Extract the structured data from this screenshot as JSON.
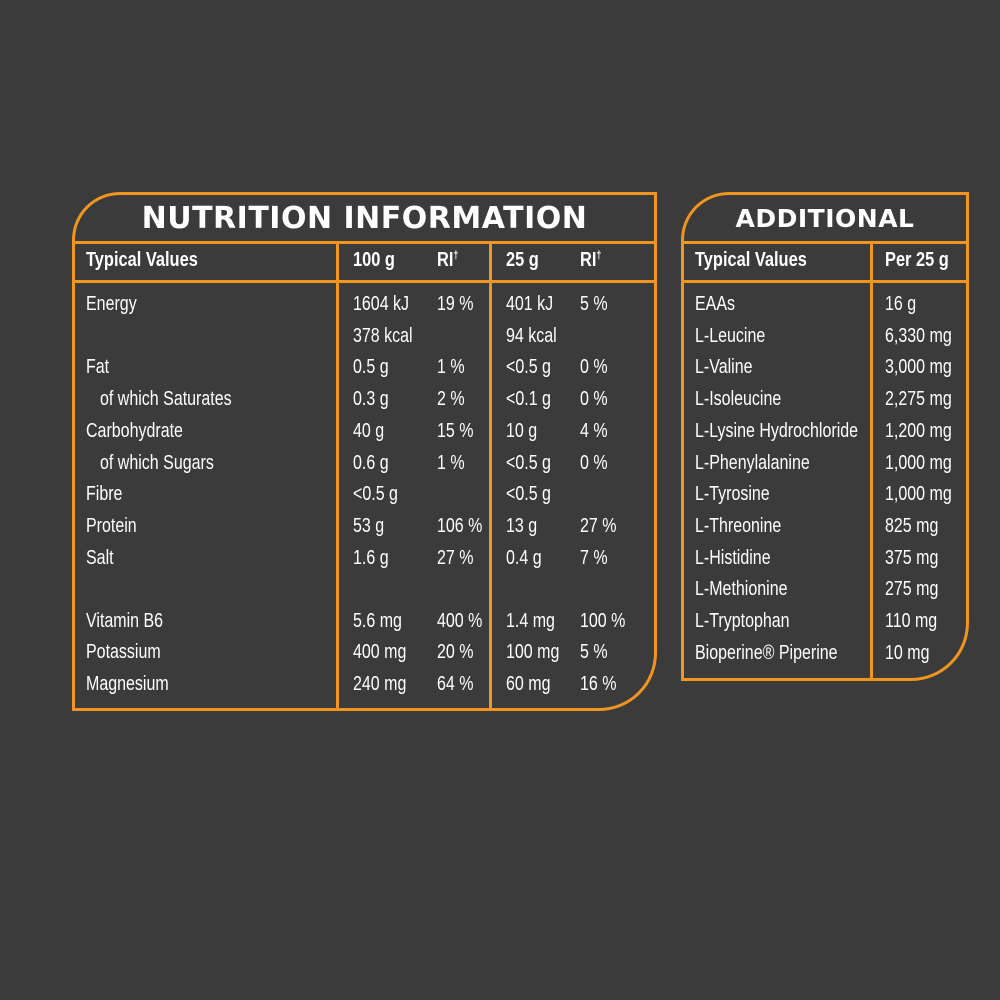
{
  "nutrition": {
    "title": "NUTRITION INFORMATION",
    "headers": {
      "typical": "Typical Values",
      "col100": "100 g",
      "ri1": "RI",
      "col25": "25 g",
      "ri2": "RI",
      "dagger": "†"
    },
    "rows": [
      {
        "label": "Energy",
        "v100": "1604 kJ",
        "ri100": "19 %",
        "v25": "401 kJ",
        "ri25": "5 %"
      },
      {
        "label": "",
        "v100": "378 kcal",
        "ri100": "",
        "v25": "94 kcal",
        "ri25": ""
      },
      {
        "label": "Fat",
        "v100": "0.5 g",
        "ri100": "1 %",
        "v25": "<0.5 g",
        "ri25": "0 %"
      },
      {
        "label": "of which Saturates",
        "v100": "0.3 g",
        "ri100": "2 %",
        "v25": "<0.1 g",
        "ri25": "0 %"
      },
      {
        "label": "Carbohydrate",
        "v100": "40 g",
        "ri100": "15 %",
        "v25": "10 g",
        "ri25": "4 %"
      },
      {
        "label": "of which Sugars",
        "v100": "0.6 g",
        "ri100": "1 %",
        "v25": "<0.5 g",
        "ri25": "0 %"
      },
      {
        "label": "Fibre",
        "v100": "<0.5 g",
        "ri100": "",
        "v25": "<0.5 g",
        "ri25": ""
      },
      {
        "label": "Protein",
        "v100": "53 g",
        "ri100": "106 %",
        "v25": "13 g",
        "ri25": "27 %"
      },
      {
        "label": "Salt",
        "v100": "1.6 g",
        "ri100": "27 %",
        "v25": "0.4 g",
        "ri25": "7 %"
      },
      {
        "label": "Vitamin B6",
        "v100": "5.6 mg",
        "ri100": "400 %",
        "v25": "1.4 mg",
        "ri25": "100 %"
      },
      {
        "label": "Potassium",
        "v100": "400 mg",
        "ri100": "20 %",
        "v25": "100 mg",
        "ri25": "5 %"
      },
      {
        "label": "Magnesium",
        "v100": "240 mg",
        "ri100": "64 %",
        "v25": "60 mg",
        "ri25": "16 %"
      }
    ]
  },
  "additional": {
    "title": "ADDITIONAL",
    "headers": {
      "typical": "Typical Values",
      "per": "Per 25 g"
    },
    "rows": [
      {
        "label": "EAAs",
        "value": "16 g"
      },
      {
        "label": "L-Leucine",
        "value": "6,330 mg"
      },
      {
        "label": "L-Valine",
        "value": "3,000 mg"
      },
      {
        "label": "L-Isoleucine",
        "value": "2,275 mg"
      },
      {
        "label": "L-Lysine Hydrochloride",
        "value": "1,200 mg"
      },
      {
        "label": "L-Phenylalanine",
        "value": "1,000 mg"
      },
      {
        "label": "L-Tyrosine",
        "value": "1,000 mg"
      },
      {
        "label": "L-Threonine",
        "value": "825 mg"
      },
      {
        "label": "L-Histidine",
        "value": "375 mg"
      },
      {
        "label": "L-Methionine",
        "value": "275 mg"
      },
      {
        "label": "L-Tryptophan",
        "value": "110 mg"
      },
      {
        "label": "Bioperine® Piperine",
        "value": "10 mg"
      }
    ]
  },
  "colors": {
    "background": "#3b3b3b",
    "accent": "#f0951e",
    "text": "#ffffff"
  }
}
